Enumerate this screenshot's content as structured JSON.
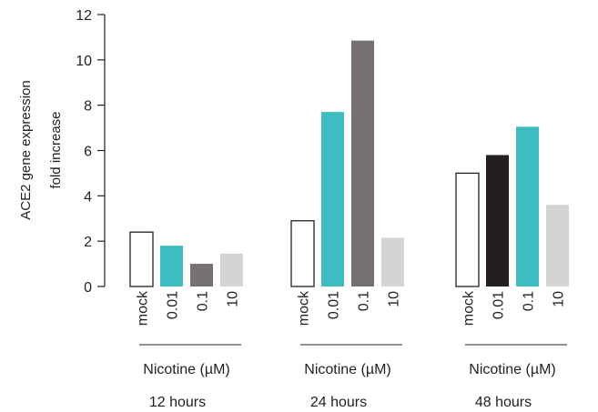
{
  "chart_data": {
    "type": "bar",
    "title": "",
    "ylabel_lines": [
      "ACE2 gene expression",
      "fold increase"
    ],
    "ylim": [
      0,
      12
    ],
    "yticks": [
      0,
      2,
      4,
      6,
      8,
      10,
      12
    ],
    "grid": false,
    "legend": "none",
    "groups": [
      {
        "label": "12 hours",
        "sublabel": "Nicotine (µM)",
        "categories": [
          "mock",
          "0.01",
          "0.1",
          "10"
        ],
        "values": [
          2.4,
          1.8,
          1.0,
          1.45
        ],
        "colors": [
          "#ffffff",
          "#3dbdc2",
          "#767070",
          "#d3d4d6"
        ]
      },
      {
        "label": "24 hours",
        "sublabel": "Nicotine (µM)",
        "categories": [
          "mock",
          "0.01",
          "0.1",
          "10"
        ],
        "values": [
          2.9,
          7.7,
          10.85,
          2.15
        ],
        "colors": [
          "#ffffff",
          "#3dbdc2",
          "#767070",
          "#d3d4d6"
        ]
      },
      {
        "label": "48 hours",
        "sublabel": "Nicotine (µM)",
        "categories": [
          "mock",
          "0.01",
          "0.1",
          "10"
        ],
        "values": [
          5.0,
          5.8,
          7.05,
          3.6
        ],
        "colors": [
          "#ffffff",
          "#231f20",
          "#3dbdc2",
          "#d3d4d6"
        ]
      }
    ]
  }
}
